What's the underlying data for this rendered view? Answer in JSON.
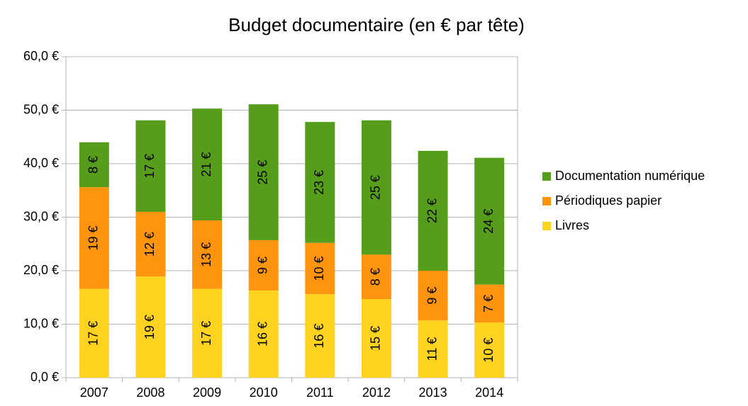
{
  "chart_data": {
    "type": "stacked_bar",
    "title": "Budget documentaire (en € par tête)",
    "categories": [
      "2007",
      "2008",
      "2009",
      "2010",
      "2011",
      "2012",
      "2013",
      "2014"
    ],
    "series": [
      {
        "name": "Livres",
        "color": "#ffd320",
        "values": [
          16.6,
          18.9,
          16.6,
          16.3,
          15.6,
          14.7,
          10.7,
          10.3
        ],
        "value_labels": [
          "17 €",
          "19 €",
          "17 €",
          "16 €",
          "16 €",
          "15 €",
          "11 €",
          "10 €"
        ]
      },
      {
        "name": "Périodiques papier",
        "color": "#ff950e",
        "values": [
          19.0,
          12.1,
          12.8,
          9.4,
          9.6,
          8.3,
          9.3,
          7.1
        ],
        "value_labels": [
          "19 €",
          "12 €",
          "13 €",
          "9 €",
          "10 €",
          "8 €",
          "9 €",
          "7 €"
        ]
      },
      {
        "name": "Documentation numérique",
        "color": "#579d1c",
        "values": [
          8.4,
          17.1,
          20.9,
          25.4,
          22.6,
          25.1,
          22.4,
          23.7
        ],
        "value_labels": [
          "8 €",
          "17 €",
          "21 €",
          "25 €",
          "23 €",
          "25 €",
          "22 €",
          "24 €"
        ]
      }
    ],
    "ylim": [
      0,
      60
    ],
    "yticks": [
      {
        "value": 0,
        "label": "0,0 €"
      },
      {
        "value": 10,
        "label": "10,0 €"
      },
      {
        "value": 20,
        "label": "20,0 €"
      },
      {
        "value": 30,
        "label": "30,0 €"
      },
      {
        "value": 40,
        "label": "40,0 €"
      },
      {
        "value": 50,
        "label": "50,0 €"
      },
      {
        "value": 60,
        "label": "60,0 €"
      }
    ],
    "grid": true,
    "legend": "right"
  }
}
